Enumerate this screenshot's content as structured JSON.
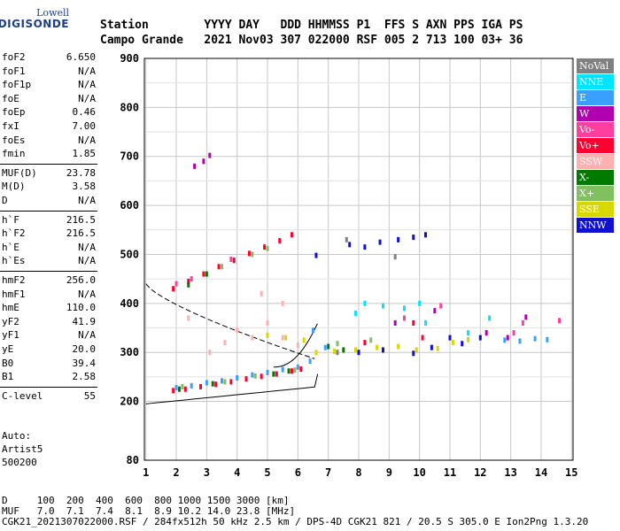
{
  "logo": {
    "line1": "Lowell",
    "line2": "DIGISONDE"
  },
  "header": {
    "line1": "Station        YYYY DAY   DDD HHMMSS P1  FFS S AXN PPS IGA PS",
    "line2": "Campo Grande   2021 Nov03 307 022000 RSF 005 2 713 100 03+ 36"
  },
  "params": [
    {
      "k": "foF2",
      "v": "6.650"
    },
    {
      "k": "foF1",
      "v": "N/A"
    },
    {
      "k": "foF1p",
      "v": "N/A"
    },
    {
      "k": "foE",
      "v": "N/A"
    },
    {
      "k": "foEp",
      "v": "0.46"
    },
    {
      "k": "fxI",
      "v": "7.00"
    },
    {
      "k": "foEs",
      "v": "N/A"
    },
    {
      "k": "fmin",
      "v": "1.85"
    },
    {
      "k": "MUF(D)",
      "v": "23.78"
    },
    {
      "k": "M(D)",
      "v": "3.58"
    },
    {
      "k": "D",
      "v": "N/A"
    },
    {
      "k": "h`F",
      "v": "216.5"
    },
    {
      "k": "h`F2",
      "v": "216.5"
    },
    {
      "k": "h`E",
      "v": "N/A"
    },
    {
      "k": "h`Es",
      "v": "N/A"
    },
    {
      "k": "hmF2",
      "v": "256.0"
    },
    {
      "k": "hmF1",
      "v": "N/A"
    },
    {
      "k": "hmE",
      "v": "110.0"
    },
    {
      "k": "yF2",
      "v": "41.9"
    },
    {
      "k": "yF1",
      "v": "N/A"
    },
    {
      "k": "yE",
      "v": "20.0"
    },
    {
      "k": "B0",
      "v": "39.4"
    },
    {
      "k": "B1",
      "v": "2.58"
    },
    {
      "k": "C-level",
      "v": "55"
    }
  ],
  "auto": {
    "l1": "Auto:",
    "l2": "Artist5",
    "l3": "500200"
  },
  "legend": [
    {
      "name": "NoVal",
      "color": "#808080"
    },
    {
      "name": "NNE",
      "color": "#00e5ff"
    },
    {
      "name": "E",
      "color": "#3aa0ff"
    },
    {
      "name": "W",
      "color": "#b000b0"
    },
    {
      "name": "Vo-",
      "color": "#ff3fa0"
    },
    {
      "name": "Vo+",
      "color": "#ff0030"
    },
    {
      "name": "SSW",
      "color": "#ffb0b0"
    },
    {
      "name": "X-",
      "color": "#007a00"
    },
    {
      "name": "X+",
      "color": "#80c060"
    },
    {
      "name": "SSE",
      "color": "#d8d800"
    },
    {
      "name": "NNW",
      "color": "#1010d0"
    }
  ],
  "footer": {
    "l1": "D     100  200  400  600  800 1000 1500 3000 [km]",
    "l2": "MUF   7.0  7.1  7.4  8.1  8.9 10.2 14.0 23.8 [MHz]",
    "l3": "CGK21_2021307022000.RSF / 284fx512h 50 kHz 2.5 km / DPS-4D CGK21 821 / 20.5 S 305.0 E Ion2Png 1.3.20"
  },
  "chart_data": {
    "type": "scatter",
    "x_range": [
      0.95,
      15.05
    ],
    "y_range": [
      80,
      900
    ],
    "x_ticks": [
      1,
      2,
      3,
      4,
      5,
      6,
      7,
      8,
      9,
      10,
      11,
      12,
      13,
      14,
      15
    ],
    "y_ticks": [
      80,
      200,
      300,
      400,
      500,
      600,
      700,
      800,
      900
    ],
    "grid": true,
    "series": [
      {
        "name": "Vo+",
        "points": [
          [
            1.9,
            222
          ],
          [
            2.3,
            225
          ],
          [
            2.8,
            230
          ],
          [
            3.3,
            235
          ],
          [
            3.8,
            240
          ],
          [
            4.3,
            246
          ],
          [
            4.8,
            251
          ],
          [
            5.3,
            256
          ],
          [
            5.8,
            262
          ],
          [
            6.1,
            266
          ],
          [
            1.9,
            430
          ],
          [
            2.4,
            445
          ],
          [
            2.9,
            460
          ],
          [
            3.4,
            475
          ],
          [
            3.9,
            488
          ],
          [
            4.4,
            502
          ],
          [
            4.9,
            515
          ],
          [
            5.4,
            528
          ],
          [
            5.8,
            540
          ],
          [
            9.8,
            360
          ],
          [
            10.1,
            330
          ],
          [
            8.2,
            320
          ]
        ]
      },
      {
        "name": "E",
        "points": [
          [
            2.0,
            228
          ],
          [
            2.5,
            232
          ],
          [
            3.0,
            238
          ],
          [
            3.5,
            242
          ],
          [
            4.0,
            248
          ],
          [
            4.5,
            254
          ],
          [
            5.0,
            259
          ],
          [
            5.5,
            265
          ],
          [
            6.0,
            270
          ],
          [
            6.4,
            282
          ],
          [
            12.8,
            325
          ],
          [
            13.3,
            323
          ],
          [
            13.8,
            328
          ],
          [
            14.2,
            326
          ],
          [
            6.5,
            345
          ],
          [
            6.9,
            310
          ]
        ]
      },
      {
        "name": "NNW",
        "points": [
          [
            7.7,
            520
          ],
          [
            8.2,
            515
          ],
          [
            8.7,
            525
          ],
          [
            9.3,
            530
          ],
          [
            9.8,
            535
          ],
          [
            10.2,
            540
          ],
          [
            8.0,
            300
          ],
          [
            8.8,
            305
          ],
          [
            9.8,
            298
          ],
          [
            10.4,
            310
          ],
          [
            11.0,
            330
          ],
          [
            11.4,
            318
          ],
          [
            12.0,
            330
          ],
          [
            6.6,
            498
          ]
        ]
      },
      {
        "name": "SSE",
        "points": [
          [
            7.9,
            305
          ],
          [
            8.6,
            310
          ],
          [
            9.3,
            312
          ],
          [
            9.9,
            305
          ],
          [
            10.6,
            308
          ],
          [
            11.1,
            320
          ],
          [
            11.6,
            326
          ],
          [
            6.6,
            300
          ],
          [
            7.2,
            302
          ],
          [
            5.0,
            335
          ],
          [
            5.6,
            330
          ],
          [
            6.2,
            325
          ]
        ]
      },
      {
        "name": "SSW",
        "points": [
          [
            3.1,
            300
          ],
          [
            3.6,
            320
          ],
          [
            4.0,
            345
          ],
          [
            4.5,
            330
          ],
          [
            5.0,
            360
          ],
          [
            5.5,
            330
          ],
          [
            6.0,
            315
          ],
          [
            2.4,
            370
          ],
          [
            4.8,
            420
          ],
          [
            5.5,
            400
          ]
        ]
      },
      {
        "name": "NNE",
        "points": [
          [
            8.2,
            400
          ],
          [
            8.8,
            395
          ],
          [
            9.5,
            390
          ],
          [
            10.0,
            400
          ],
          [
            7.9,
            380
          ],
          [
            10.2,
            360
          ],
          [
            12.3,
            370
          ],
          [
            11.6,
            340
          ]
        ]
      },
      {
        "name": "W",
        "points": [
          [
            2.6,
            680
          ],
          [
            2.9,
            690
          ],
          [
            3.1,
            702
          ],
          [
            12.2,
            340
          ],
          [
            12.9,
            330
          ],
          [
            13.5,
            372
          ],
          [
            9.2,
            360
          ],
          [
            10.5,
            385
          ]
        ]
      },
      {
        "name": "X-",
        "points": [
          [
            2.1,
            225
          ],
          [
            3.2,
            236
          ],
          [
            5.2,
            256
          ],
          [
            5.7,
            262
          ],
          [
            7.0,
            312
          ],
          [
            7.5,
            305
          ],
          [
            2.4,
            438
          ],
          [
            3.0,
            460
          ]
        ]
      },
      {
        "name": "X+",
        "points": [
          [
            2.2,
            230
          ],
          [
            3.6,
            240
          ],
          [
            4.6,
            252
          ],
          [
            5.9,
            264
          ],
          [
            7.3,
            318
          ],
          [
            8.4,
            325
          ],
          [
            3.5,
            475
          ],
          [
            4.5,
            500
          ],
          [
            5.0,
            512
          ]
        ]
      },
      {
        "name": "Vo-",
        "points": [
          [
            2.0,
            440
          ],
          [
            2.5,
            450
          ],
          [
            3.8,
            490
          ],
          [
            9.5,
            370
          ],
          [
            10.7,
            395
          ],
          [
            13.1,
            340
          ],
          [
            14.6,
            365
          ],
          [
            13.4,
            360
          ]
        ]
      },
      {
        "name": "NoVal",
        "points": [
          [
            7.6,
            530
          ],
          [
            9.2,
            495
          ],
          [
            7.3,
            300
          ]
        ]
      }
    ]
  }
}
